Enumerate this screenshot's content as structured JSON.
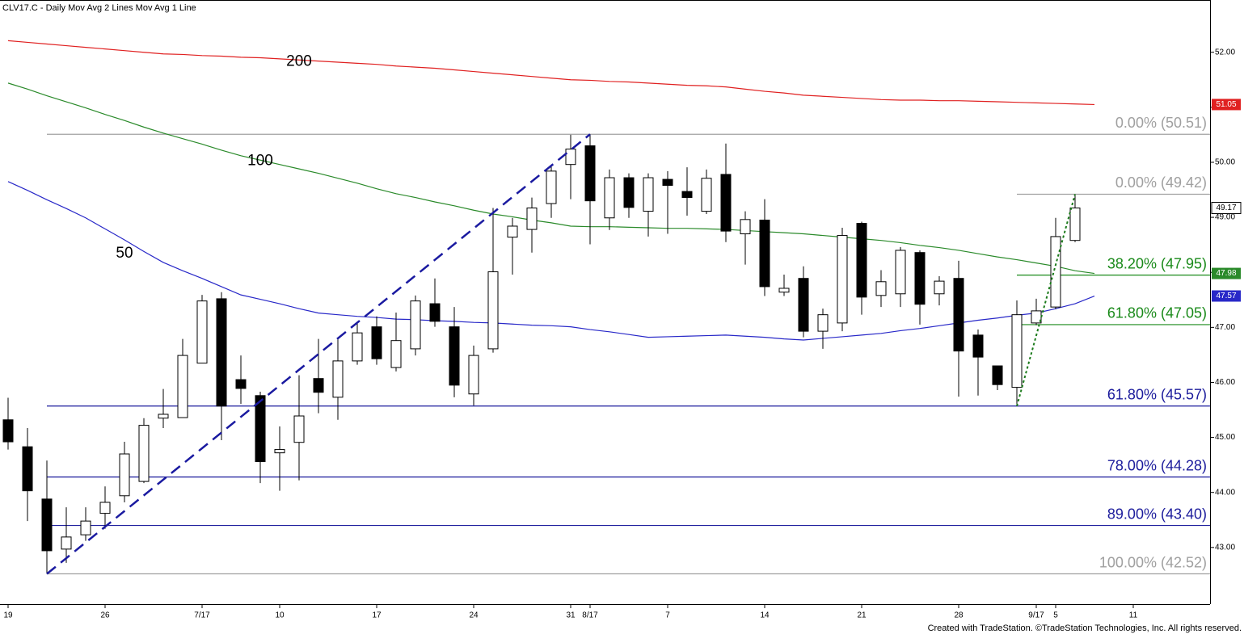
{
  "chart_data": {
    "type": "candlestick",
    "title": "CLV17.C - Daily  Mov Avg 2 Lines  Mov Avg 1 Line",
    "footer": "Created with TradeStation. ©TradeStation Technologies, Inc. All rights reserved.",
    "categories": [
      "19",
      null,
      null,
      null,
      null,
      "26",
      null,
      null,
      null,
      null,
      "7/17",
      null,
      null,
      null,
      "10",
      null,
      null,
      null,
      null,
      "17",
      null,
      null,
      null,
      null,
      "24",
      null,
      null,
      null,
      null,
      "31",
      "8/17",
      null,
      null,
      null,
      "7",
      null,
      null,
      null,
      null,
      "14",
      null,
      null,
      null,
      null,
      "21",
      null,
      null,
      null,
      null,
      "28",
      null,
      null,
      null,
      "9/17",
      "5",
      null,
      null,
      null,
      "11"
    ],
    "open": [
      45.32,
      44.83,
      43.88,
      42.97,
      43.23,
      43.62,
      43.94,
      44.2,
      45.35,
      45.36,
      46.35,
      47.52,
      46.05,
      45.76,
      44.72,
      44.91,
      46.07,
      45.73,
      46.39,
      47.01,
      46.27,
      46.61,
      47.43,
      47.01,
      45.79,
      46.61,
      48.64,
      48.78,
      49.25,
      49.96,
      50.3,
      48.99,
      49.72,
      49.11,
      49.69,
      49.47,
      49.11,
      49.78,
      48.7,
      48.95,
      47.64,
      47.89,
      46.93,
      47.08,
      48.89,
      47.58,
      47.61,
      48.36,
      47.61,
      47.89,
      46.86,
      46.3,
      45.91,
      47.08,
      47.37,
      48.58,
      null,
      null,
      null
    ],
    "high": [
      45.72,
      45.17,
      44.58,
      43.73,
      43.73,
      44.11,
      44.92,
      45.35,
      45.88,
      46.79,
      47.59,
      47.64,
      46.49,
      45.83,
      45.2,
      46.13,
      46.79,
      46.79,
      47.08,
      47.2,
      47.27,
      47.58,
      47.89,
      47.37,
      46.67,
      49.17,
      48.99,
      49.36,
      49.94,
      50.5,
      50.51,
      49.87,
      49.8,
      49.8,
      49.84,
      49.91,
      49.87,
      50.34,
      49.11,
      49.33,
      47.96,
      48.11,
      47.34,
      48.81,
      48.92,
      48.04,
      48.46,
      48.4,
      47.93,
      48.21,
      46.96,
      46.3,
      47.49,
      47.52,
      48.99,
      49.42,
      null,
      null,
      null
    ],
    "low": [
      44.78,
      43.48,
      42.52,
      42.72,
      43.12,
      43.34,
      43.82,
      44.17,
      45.17,
      45.36,
      46.35,
      44.95,
      45.61,
      44.17,
      44.03,
      44.22,
      45.44,
      45.32,
      46.32,
      46.32,
      46.2,
      46.49,
      47.01,
      45.73,
      45.58,
      46.54,
      47.96,
      48.36,
      48.99,
      49.33,
      48.51,
      48.77,
      48.99,
      48.65,
      48.7,
      49.03,
      49.06,
      48.55,
      48.14,
      47.57,
      47.57,
      46.82,
      46.61,
      46.93,
      47.23,
      47.37,
      47.37,
      47.05,
      47.4,
      45.74,
      45.76,
      45.86,
      45.57,
      47.04,
      47.33,
      48.55,
      null,
      null,
      null
    ],
    "close": [
      44.92,
      44.03,
      42.94,
      43.19,
      43.48,
      43.82,
      44.7,
      45.22,
      45.42,
      46.49,
      47.48,
      45.57,
      45.89,
      44.56,
      44.78,
      45.39,
      45.82,
      46.39,
      46.9,
      46.43,
      46.76,
      47.48,
      47.11,
      45.95,
      46.49,
      48.01,
      48.84,
      49.17,
      49.84,
      50.24,
      49.3,
      49.72,
      49.18,
      49.72,
      49.58,
      49.36,
      49.71,
      48.75,
      48.96,
      47.74,
      47.71,
      46.93,
      47.23,
      48.67,
      47.55,
      47.83,
      48.4,
      47.42,
      47.84,
      46.57,
      46.46,
      45.96,
      47.23,
      47.3,
      48.65,
      49.17,
      null,
      null,
      null
    ],
    "series": [
      {
        "name": "200",
        "color": "#e02020",
        "values": [
          52.21,
          52.18,
          52.15,
          52.12,
          52.09,
          52.06,
          52.03,
          52.0,
          51.97,
          51.96,
          51.94,
          51.93,
          51.91,
          51.9,
          51.88,
          51.86,
          51.84,
          51.82,
          51.8,
          51.78,
          51.75,
          51.73,
          51.71,
          51.68,
          51.65,
          51.62,
          51.59,
          51.56,
          51.53,
          51.5,
          51.49,
          51.47,
          51.46,
          51.44,
          51.42,
          51.4,
          51.39,
          51.37,
          51.33,
          51.29,
          51.26,
          51.22,
          51.2,
          51.18,
          51.16,
          51.14,
          51.13,
          51.13,
          51.12,
          51.12,
          51.11,
          51.1,
          51.09,
          51.08,
          51.07,
          51.06,
          51.05,
          null,
          null
        ]
      },
      {
        "name": "100",
        "color": "#2a8a2a",
        "values": [
          51.44,
          51.33,
          51.21,
          51.1,
          50.99,
          50.87,
          50.76,
          50.64,
          50.53,
          50.43,
          50.33,
          50.22,
          50.12,
          50.04,
          49.96,
          49.88,
          49.8,
          49.71,
          49.62,
          49.52,
          49.43,
          49.36,
          49.28,
          49.21,
          49.13,
          49.06,
          49.01,
          48.95,
          48.9,
          48.84,
          48.83,
          48.83,
          48.82,
          48.81,
          48.8,
          48.8,
          48.79,
          48.78,
          48.76,
          48.74,
          48.72,
          48.7,
          48.67,
          48.64,
          48.61,
          48.58,
          48.54,
          48.49,
          48.45,
          48.4,
          48.34,
          48.28,
          48.23,
          48.17,
          48.11,
          48.03,
          47.98,
          null,
          null
        ]
      },
      {
        "name": "50",
        "color": "#2828c8",
        "values": [
          49.65,
          49.49,
          49.32,
          49.16,
          48.99,
          48.79,
          48.59,
          48.38,
          48.18,
          48.03,
          47.89,
          47.74,
          47.59,
          47.51,
          47.43,
          47.34,
          47.26,
          47.23,
          47.2,
          47.18,
          47.15,
          47.14,
          47.12,
          47.11,
          47.09,
          47.08,
          47.06,
          47.04,
          47.03,
          47.01,
          46.96,
          46.92,
          46.87,
          46.82,
          46.83,
          46.84,
          46.85,
          46.86,
          46.84,
          46.82,
          46.79,
          46.77,
          46.8,
          46.83,
          46.86,
          46.89,
          46.94,
          46.98,
          47.03,
          47.08,
          47.13,
          47.17,
          47.22,
          47.26,
          47.34,
          47.43,
          47.57,
          null,
          null
        ]
      }
    ],
    "fib_swings": [
      {
        "low": 42.52,
        "high": 50.51,
        "color": "#1a1aa0",
        "dash": "dashed",
        "levels": [
          {
            "label": "0.00% (50.51)",
            "value": 50.51,
            "color": "#a0a0a0"
          },
          {
            "label": "61.80% (45.57)",
            "value": 45.57,
            "color": "#1c1c9c"
          },
          {
            "label": "78.00% (44.28)",
            "value": 44.28,
            "color": "#1c1c9c"
          },
          {
            "label": "89.00% (43.40)",
            "value": 43.4,
            "color": "#1c1c9c"
          },
          {
            "label": "100.00% (42.52)",
            "value": 42.52,
            "color": "#a0a0a0"
          }
        ]
      },
      {
        "low": 45.57,
        "high": 49.42,
        "color": "#1a7a1a",
        "dash": "dotted",
        "levels": [
          {
            "label": "0.00% (49.42)",
            "value": 49.42,
            "color": "#a0a0a0"
          },
          {
            "label": "38.20% (47.95)",
            "value": 47.95,
            "color": "#1a8a1a"
          },
          {
            "label": "61.80% (47.05)",
            "value": 47.05,
            "color": "#1a8a1a"
          }
        ]
      }
    ],
    "ylim": [
      41.97,
      52.95
    ],
    "yticks": [
      {
        "value": 43,
        "label": "43.00"
      },
      {
        "value": 44,
        "label": "44.00"
      },
      {
        "value": 45,
        "label": "45.00"
      },
      {
        "value": 46,
        "label": "46.00"
      },
      {
        "value": 47,
        "label": "47.00"
      },
      {
        "value": 48,
        "label": "48.00"
      },
      {
        "value": 49,
        "label": "49.00"
      },
      {
        "value": 50,
        "label": "50.00"
      },
      {
        "value": 51,
        "label": "51.00"
      },
      {
        "value": 52,
        "label": "52.00"
      }
    ],
    "grid": false
  }
}
